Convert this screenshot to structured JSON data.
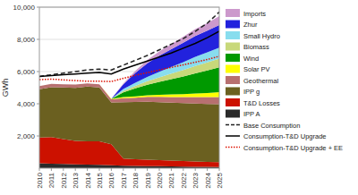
{
  "chart_data": {
    "type": "area",
    "stacked": true,
    "ylabel": "GWh",
    "x": [
      2010,
      2011,
      2012,
      2013,
      2014,
      2015,
      2016,
      2017,
      2018,
      2019,
      2020,
      2021,
      2022,
      2023,
      2024,
      2025
    ],
    "xlim": [
      2010,
      2025
    ],
    "xticks": [
      2010,
      2011,
      2012,
      2013,
      2014,
      2015,
      2016,
      2017,
      2018,
      2019,
      2020,
      2021,
      2022,
      2023,
      2024,
      2025
    ],
    "ylim": [
      0,
      10000
    ],
    "yticks": [
      {
        "value": 2000,
        "label": "2,000"
      },
      {
        "value": 4000,
        "label": "4,000"
      },
      {
        "value": 6000,
        "label": "6,000"
      },
      {
        "value": 8000,
        "label": "8,000"
      },
      {
        "value": 10000,
        "label": "10,000"
      }
    ],
    "grid": "y",
    "legend": "right",
    "series": [
      {
        "name": "IPP A",
        "color": "#2a2a2a",
        "values": [
          300,
          280,
          260,
          240,
          220,
          210,
          180,
          150,
          140,
          130,
          120,
          110,
          100,
          90,
          80,
          70
        ]
      },
      {
        "name": "T&D Losses",
        "color": "#cc1100",
        "values": [
          1600,
          1650,
          1550,
          1450,
          1450,
          1450,
          1300,
          450,
          420,
          400,
          380,
          360,
          340,
          330,
          310,
          300
        ]
      },
      {
        "name": "IPP g",
        "color": "#6b6020",
        "values": [
          3000,
          3100,
          3200,
          3300,
          3400,
          3350,
          2600,
          3500,
          3550,
          3600,
          3600,
          3600,
          3600,
          3600,
          3600,
          3600
        ]
      },
      {
        "name": "Geothermal",
        "color": "#b87070",
        "values": [
          200,
          200,
          200,
          200,
          200,
          200,
          200,
          250,
          270,
          300,
          330,
          350,
          370,
          400,
          420,
          450
        ]
      },
      {
        "name": "Solar PV",
        "color": "#ffff00",
        "values": [
          0,
          0,
          0,
          0,
          0,
          0,
          30,
          60,
          80,
          100,
          130,
          160,
          190,
          220,
          260,
          300
        ]
      },
      {
        "name": "Wind",
        "color": "#009900",
        "values": [
          0,
          0,
          0,
          0,
          0,
          0,
          0,
          300,
          500,
          650,
          800,
          950,
          1100,
          1250,
          1400,
          1550
        ]
      },
      {
        "name": "Biomass",
        "color": "#c8d87a",
        "values": [
          0,
          0,
          0,
          0,
          0,
          0,
          0,
          80,
          150,
          220,
          280,
          340,
          400,
          460,
          500,
          540
        ]
      },
      {
        "name": "Small Hydro",
        "color": "#88ddee",
        "values": [
          0,
          0,
          0,
          0,
          0,
          0,
          0,
          120,
          200,
          270,
          350,
          420,
          490,
          560,
          620,
          680
        ]
      },
      {
        "name": "Zhur",
        "color": "#2222dd",
        "values": [
          0,
          0,
          0,
          0,
          0,
          0,
          0,
          300,
          600,
          850,
          1000,
          1100,
          1200,
          1300,
          1350,
          1400
        ]
      },
      {
        "name": "Imports",
        "color": "#cc99cc",
        "values": [
          0,
          0,
          0,
          0,
          0,
          0,
          0,
          60,
          130,
          200,
          260,
          320,
          380,
          430,
          480,
          560
        ]
      },
      {
        "name": "Base Consumption",
        "type": "line",
        "line_style": "dashed",
        "color": "#222222",
        "values": [
          5700,
          5800,
          5900,
          6000,
          6100,
          6150,
          6100,
          6400,
          6700,
          7000,
          7350,
          7700,
          8050,
          8500,
          9000,
          9700
        ]
      },
      {
        "name": "Consumption-T&D Upgrade",
        "type": "line",
        "line_style": "solid",
        "color": "#000000",
        "values": [
          5700,
          5750,
          5800,
          5850,
          5900,
          5950,
          5850,
          6150,
          6400,
          6650,
          6900,
          7150,
          7450,
          7750,
          8100,
          8500
        ]
      },
      {
        "name": "Consumption-T&D Upgrade + EE",
        "type": "line",
        "line_style": "dotted",
        "color": "#dd1100",
        "values": [
          5500,
          5530,
          5480,
          5440,
          5400,
          5400,
          5380,
          5580,
          5770,
          5930,
          6100,
          6260,
          6420,
          6580,
          6750,
          6950
        ]
      }
    ]
  }
}
